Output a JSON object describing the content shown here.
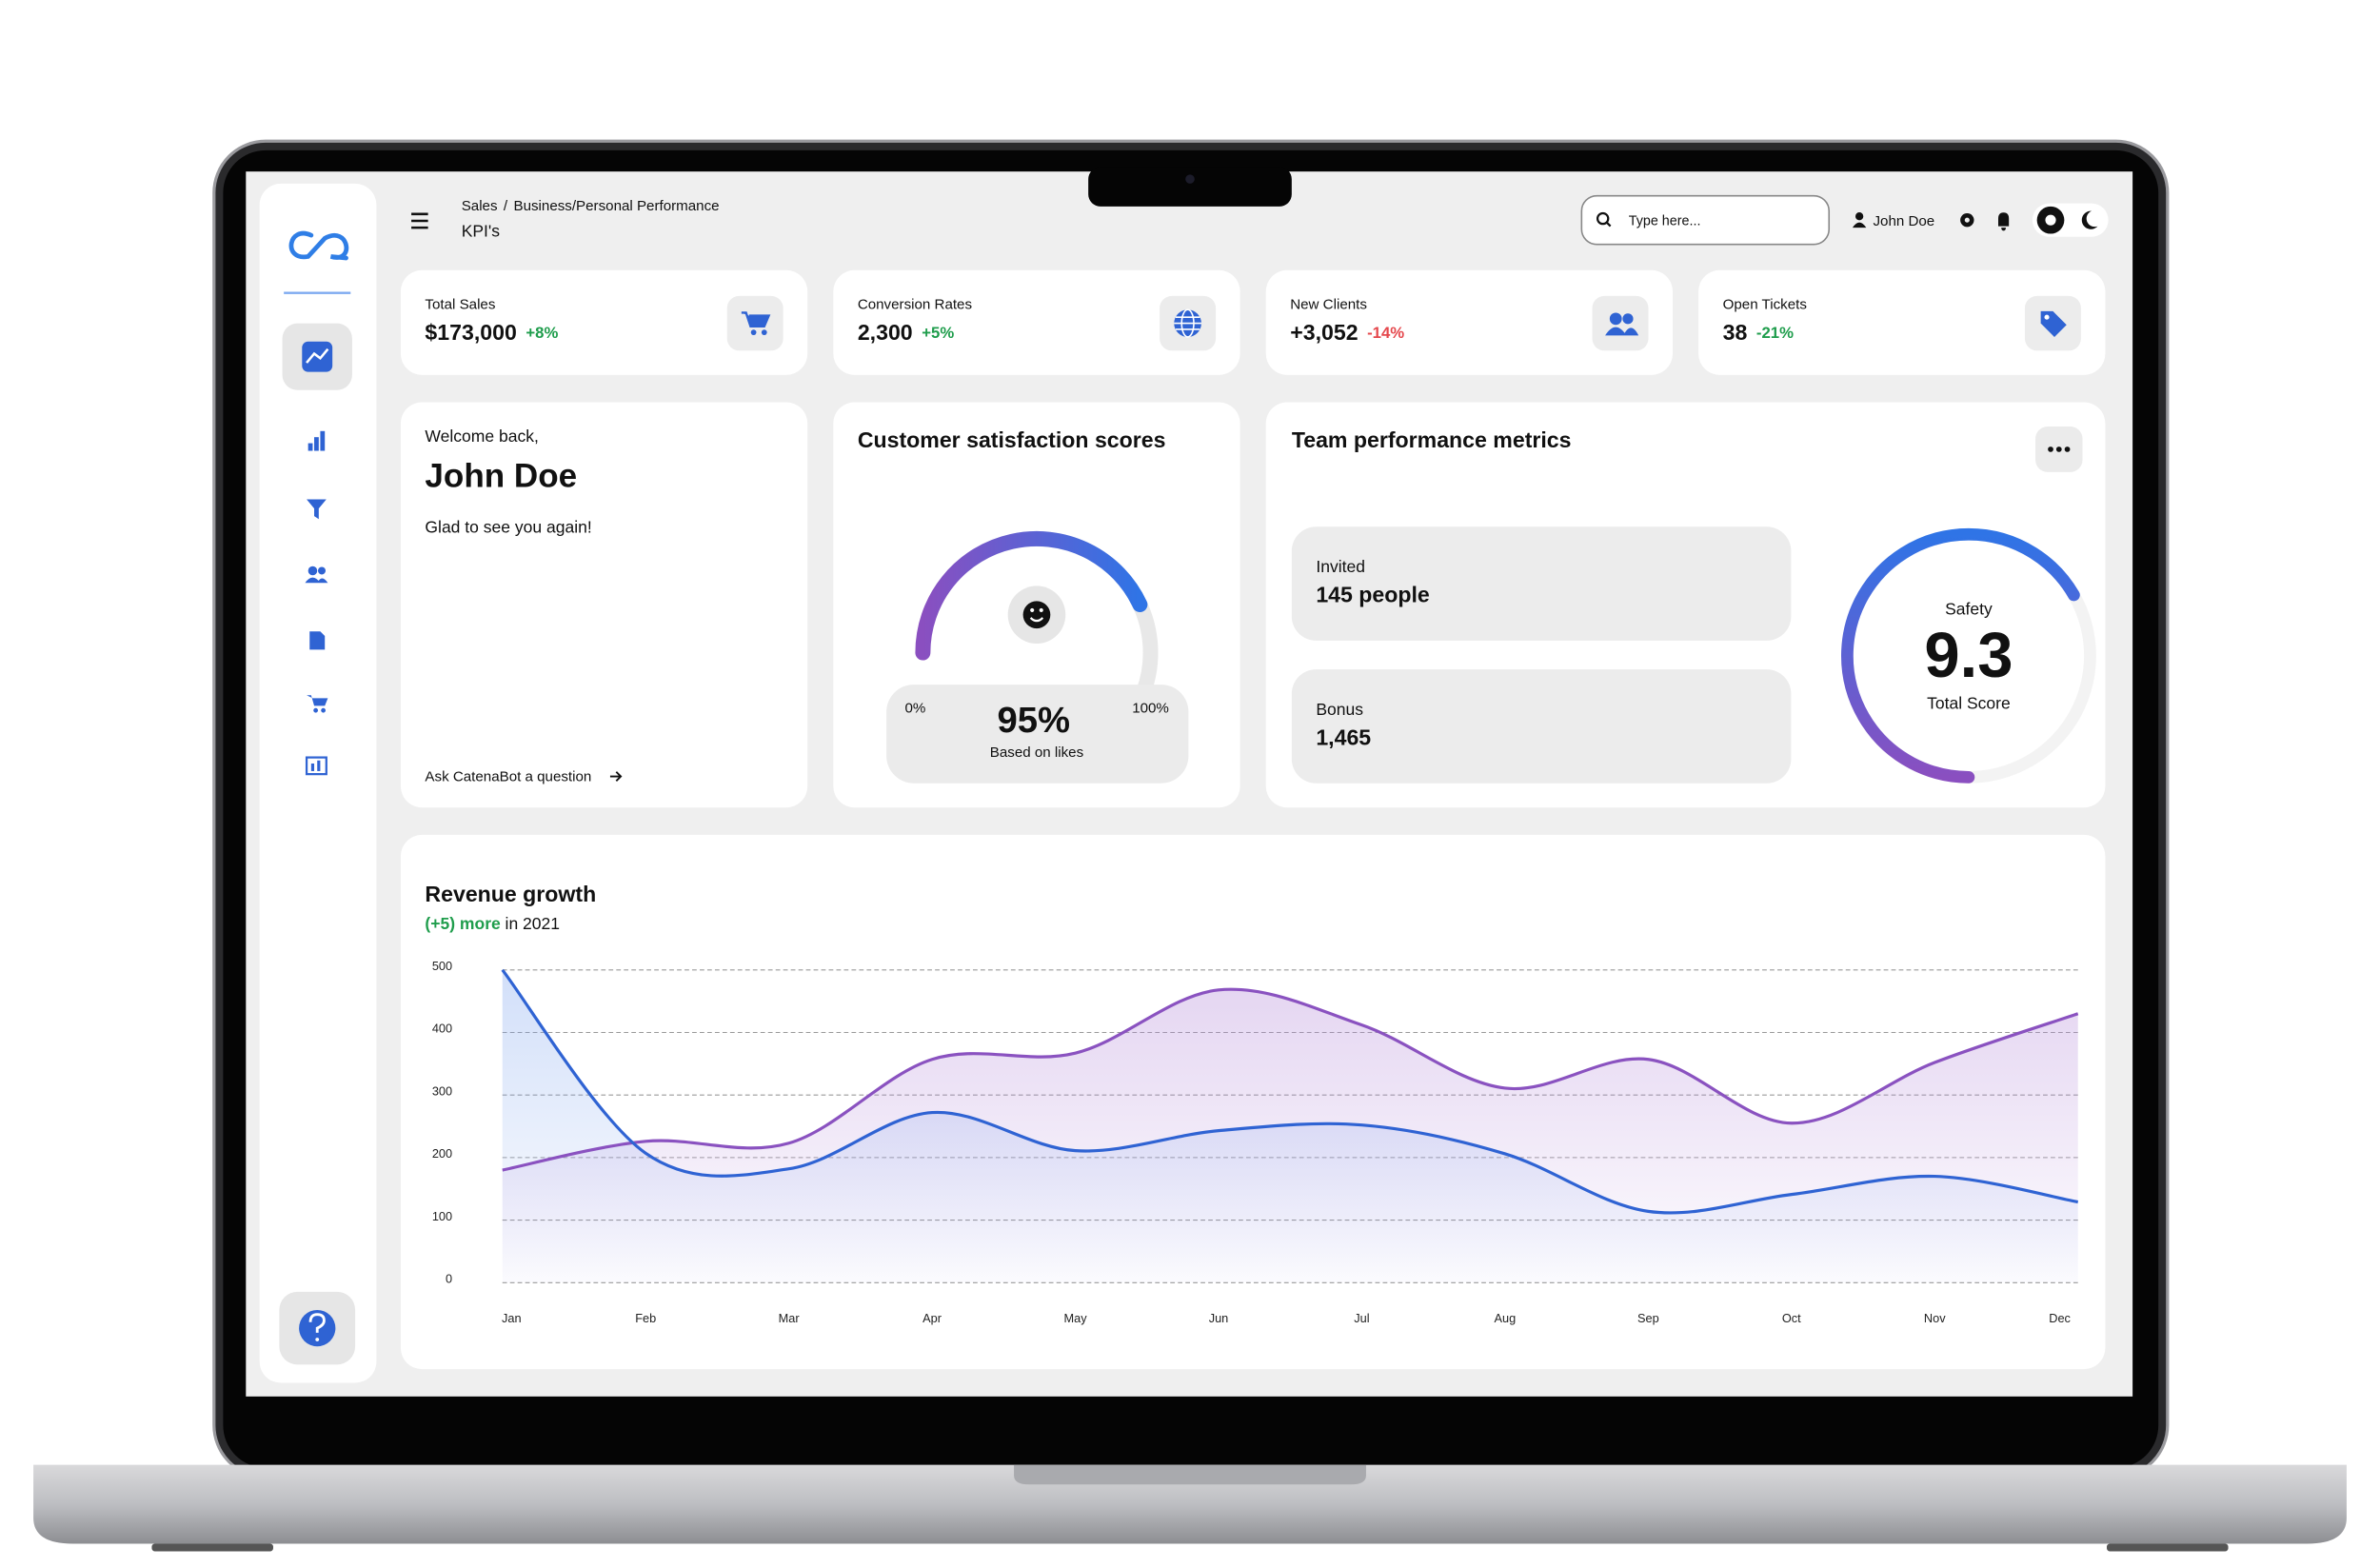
{
  "header": {
    "breadcrumb": {
      "parent": "Sales",
      "separator": "/",
      "current": "Business/Personal Performance"
    },
    "page_title": "KPI's",
    "search_placeholder": "Type here...",
    "user": "John Doe"
  },
  "kpis": [
    {
      "label": "Total Sales",
      "value": "$173,000",
      "change": "+8%",
      "color": "#1f9d4c"
    },
    {
      "label": "Conversion Rates",
      "value": "2,300",
      "change": "+5%",
      "color": "#1f9d4c"
    },
    {
      "label": "New Clients",
      "value": "+3,052",
      "change": "-14%",
      "color": "#e5484d"
    },
    {
      "label": "Open Tickets",
      "value": "38",
      "change": "-21%",
      "color": "#1f9d4c"
    }
  ],
  "welcome": {
    "greeting": "Welcome back,",
    "name": "John Doe",
    "message": "Glad to see you again!",
    "link": "Ask CatenaBot a question"
  },
  "satisfaction": {
    "title": "Customer satisfaction scores",
    "min_label": "0%",
    "max_label": "100%",
    "value": "95%",
    "caption": "Based on likes"
  },
  "team": {
    "title": "Team performance metrics",
    "items": [
      {
        "label": "Invited",
        "value": "145 people"
      },
      {
        "label": "Bonus",
        "value": "1,465"
      }
    ],
    "score": {
      "label": "Safety",
      "value": "9.3",
      "caption": "Total Score"
    }
  },
  "chart_data": {
    "type": "line",
    "title": "Revenue growth",
    "subtitle_highlight": "(+5) more",
    "subtitle": "in 2021",
    "categories": [
      "Jan",
      "Feb",
      "Mar",
      "Apr",
      "May",
      "Jun",
      "Jul",
      "Aug",
      "Sep",
      "Oct",
      "Nov",
      "Dec"
    ],
    "series": [
      {
        "color": "#8a52c0",
        "values": [
          180,
          226,
          223,
          357,
          367,
          468,
          412,
          311,
          357,
          255,
          352,
          430
        ]
      },
      {
        "color": "#2f63d3",
        "values": [
          500,
          207,
          182,
          272,
          211,
          243,
          252,
          206,
          114,
          141,
          170,
          129
        ]
      }
    ],
    "ylim": [
      0,
      500
    ],
    "yticks": [
      0,
      100,
      200,
      300,
      400,
      500
    ],
    "grid": true
  }
}
